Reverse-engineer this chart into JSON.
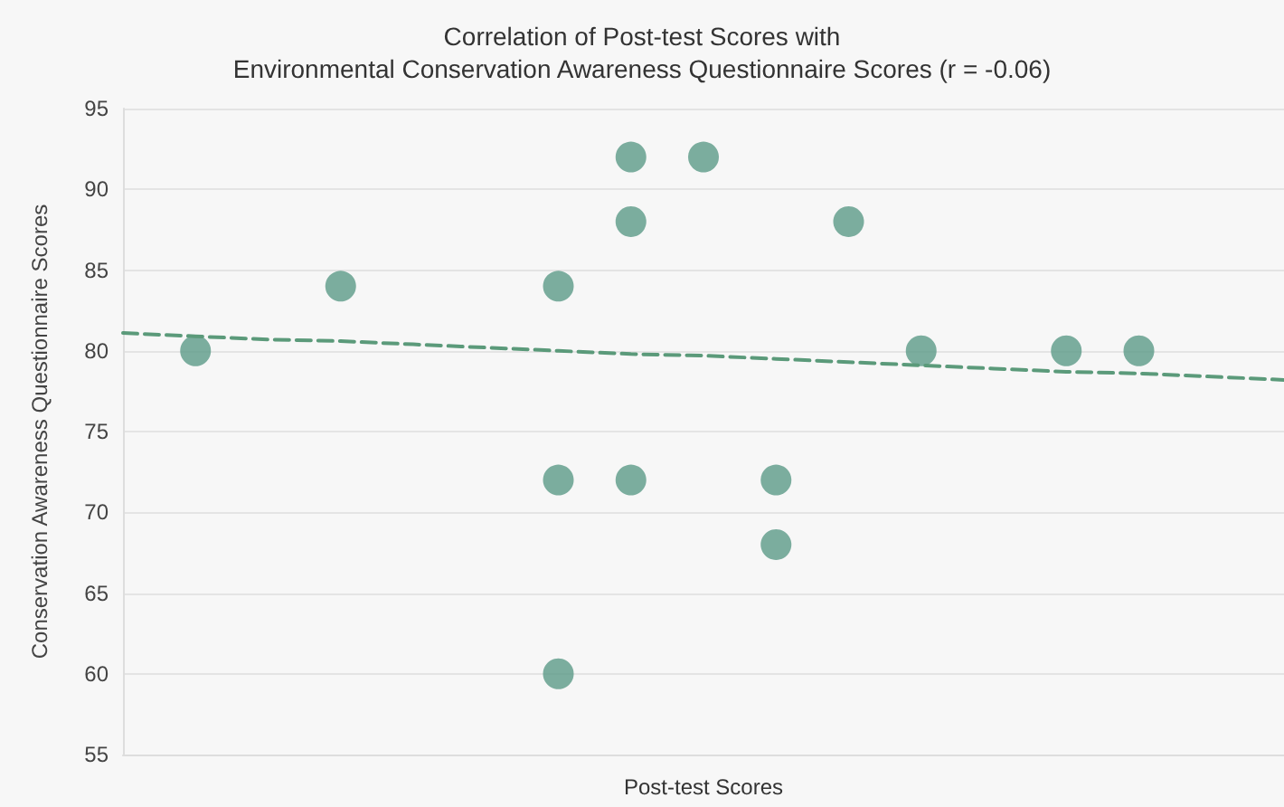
{
  "chart_data": {
    "type": "scatter",
    "title": "Correlation of Post-test Scores with\nEnvironmental Conservation Awareness Questionnaire Scores (r = -0.06)",
    "xlabel": "Post-test Scores",
    "ylabel": "Conservation Awareness Questionnaire Scores",
    "categories": [
      null,
      null,
      null,
      null,
      null,
      null,
      null,
      null,
      null,
      null,
      null,
      null,
      null,
      null,
      null,
      null,
      null
    ],
    "series": [
      {
        "color": "#5b9a87",
        "values": [
          null,
          80,
          null,
          84,
          null,
          null,
          84,
          92,
          92,
          72,
          88,
          80,
          null,
          80,
          80,
          null,
          null
        ]
      },
      {
        "color": "#5b9a87",
        "values": [
          null,
          null,
          null,
          null,
          null,
          null,
          72,
          88,
          null,
          68,
          null,
          null,
          null,
          null,
          null,
          null,
          null
        ]
      },
      {
        "color": "#5b9a87",
        "values": [
          null,
          null,
          null,
          null,
          null,
          null,
          60,
          72,
          null,
          null,
          null,
          null,
          null,
          null,
          null,
          null,
          null
        ]
      },
      {
        "type": "line",
        "color": "#5b9a7a",
        "line_style": "dashed",
        "marker": "none",
        "values": [
          81.1,
          80.9,
          80.7,
          80.6,
          80.4,
          80.2,
          80.0,
          79.8,
          79.7,
          79.5,
          79.3,
          79.1,
          78.9,
          78.7,
          78.6,
          78.4,
          78.2
        ]
      }
    ],
    "ylim": [
      55,
      95
    ],
    "yticks": [
      55,
      60,
      65,
      70,
      75,
      80,
      85,
      90,
      95
    ],
    "grid": "y",
    "tick_labels": "y",
    "marker": "circle"
  }
}
